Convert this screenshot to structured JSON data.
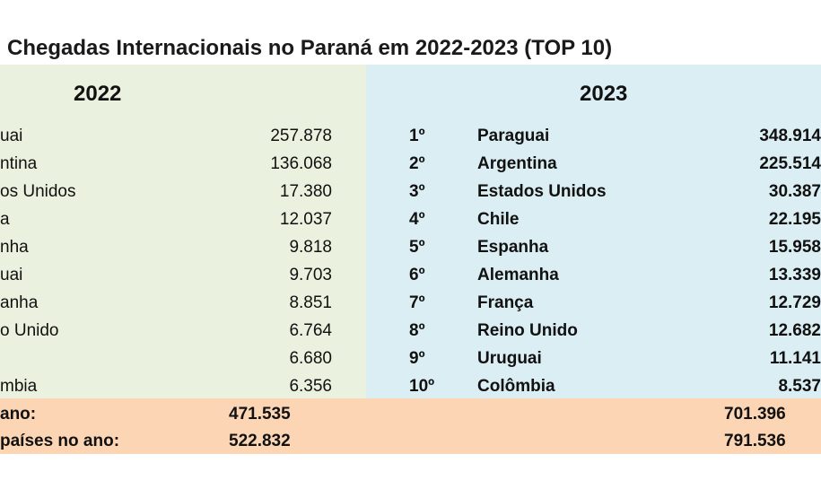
{
  "title": "Chegadas Internacionais no Paraná em 2022-2023 (TOP 10)",
  "years": {
    "left": "2022",
    "right": "2023"
  },
  "rows": [
    {
      "c22": "uai",
      "v22": "257.878",
      "rank": "1º",
      "c23": "Paraguai",
      "v23": "348.914"
    },
    {
      "c22": "ntina",
      "v22": "136.068",
      "rank": "2º",
      "c23": "Argentina",
      "v23": "225.514"
    },
    {
      "c22": "os Unidos",
      "v22": "17.380",
      "rank": "3º",
      "c23": "Estados Unidos",
      "v23": "30.387"
    },
    {
      "c22": "a",
      "v22": "12.037",
      "rank": "4º",
      "c23": "Chile",
      "v23": "22.195"
    },
    {
      "c22": "nha",
      "v22": "9.818",
      "rank": "5º",
      "c23": "Espanha",
      "v23": "15.958"
    },
    {
      "c22": "uai",
      "v22": "9.703",
      "rank": "6º",
      "c23": "Alemanha",
      "v23": "13.339"
    },
    {
      "c22": "anha",
      "v22": "8.851",
      "rank": "7º",
      "c23": "França",
      "v23": "12.729"
    },
    {
      "c22": "o Unido",
      "v22": "6.764",
      "rank": "8º",
      "c23": "Reino Unido",
      "v23": "12.682"
    },
    {
      "c22": "",
      "v22": "6.680",
      "rank": "9º",
      "c23": "Uruguai",
      "v23": "11.141"
    },
    {
      "c22": "mbia",
      "v22": "6.356",
      "rank": "10º",
      "c23": "Colômbia",
      "v23": "8.537"
    }
  ],
  "totals": [
    {
      "label": "ano:",
      "v22": "471.535",
      "v23": "701.396"
    },
    {
      "label": "países no ano:",
      "v22": "522.832",
      "v23": "791.536"
    }
  ]
}
